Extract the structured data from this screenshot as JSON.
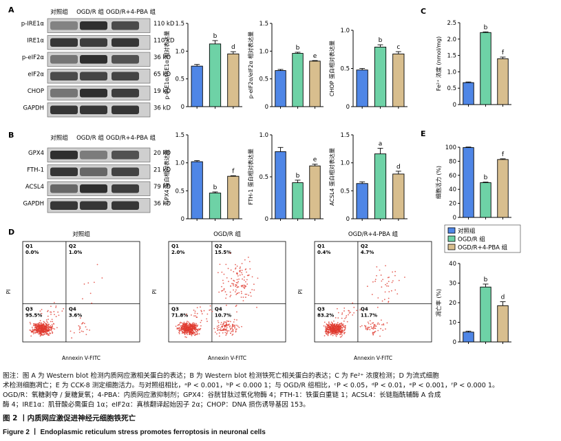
{
  "panel_labels": {
    "A": "A",
    "B": "B",
    "C": "C",
    "D": "D",
    "E": "E"
  },
  "blot_a": {
    "group_headers": [
      "对照组",
      "OGD/R 组",
      "OGD/R+4-PBA 组"
    ],
    "rows": [
      {
        "label": "p-IRE1α",
        "size": "110 kD"
      },
      {
        "label": "IRE1α",
        "size": "110 kD"
      },
      {
        "label": "p-eIF2α",
        "size": "36 kD"
      },
      {
        "label": "eIF2α",
        "size": "65 kD"
      },
      {
        "label": "CHOP",
        "size": "19 kD"
      },
      {
        "label": "GAPDH",
        "size": "36 kD"
      }
    ]
  },
  "blot_b": {
    "group_headers": [
      "对照组",
      "OGD/R 组",
      "OGD/R+4-PBA 组"
    ],
    "rows": [
      {
        "label": "GPX4",
        "size": "20 kD"
      },
      {
        "label": "FTH-1",
        "size": "21 kD"
      },
      {
        "label": "ACSL4",
        "size": "79 kD"
      },
      {
        "label": "GAPDH",
        "size": "36 kD"
      }
    ]
  },
  "chart_data": [
    {
      "id": "a1",
      "type": "bar",
      "ylabel": "p-IRE1α/IRE1α 相对表达量",
      "ylim": [
        0,
        1.5
      ],
      "yticks": [
        "0",
        "0.5",
        "1.0",
        "1.5"
      ],
      "values": [
        0.73,
        1.13,
        0.95
      ],
      "errors": [
        0.03,
        0.06,
        0.04
      ],
      "sig": [
        "",
        "b",
        "d"
      ]
    },
    {
      "id": "a2",
      "type": "bar",
      "ylabel": "p-eIF2α/eIF2α 相对表达量",
      "ylim": [
        0,
        1.5
      ],
      "yticks": [
        "0",
        "0.5",
        "1.0",
        "1.5"
      ],
      "values": [
        0.65,
        0.96,
        0.82
      ],
      "errors": [
        0.02,
        0.02,
        0.01
      ],
      "sig": [
        "",
        "b",
        "e"
      ]
    },
    {
      "id": "a3",
      "type": "bar",
      "ylabel": "CHOP 蛋白相对表达量",
      "ylim": [
        0,
        1.0
      ],
      "yticks": [
        "0",
        "0.5",
        "1.0"
      ],
      "values": [
        0.48,
        0.78,
        0.69
      ],
      "errors": [
        0.02,
        0.03,
        0.03
      ],
      "sig": [
        "",
        "b",
        "c"
      ]
    },
    {
      "id": "c",
      "type": "bar",
      "ylabel": "Fe²⁺ 浓度 (nmol/mg)",
      "ylim": [
        0,
        2.5
      ],
      "yticks": [
        "0",
        "0.5",
        "1.0",
        "1.5",
        "2.0",
        "2.5"
      ],
      "values": [
        0.67,
        2.2,
        1.4
      ],
      "errors": [
        0.02,
        0.02,
        0.05
      ],
      "sig": [
        "",
        "b",
        "f"
      ]
    },
    {
      "id": "b1",
      "type": "bar",
      "ylabel": "GPX4 蛋白相对表达量",
      "ylim": [
        0,
        1.5
      ],
      "yticks": [
        "0",
        "0.5",
        "1.0",
        "1.5"
      ],
      "values": [
        1.02,
        0.46,
        0.76
      ],
      "errors": [
        0.02,
        0.02,
        0.01
      ],
      "sig": [
        "",
        "b",
        "f"
      ]
    },
    {
      "id": "b2",
      "type": "bar",
      "ylabel": "FTH-1 蛋白相对表达量",
      "ylim": [
        0,
        1.0
      ],
      "yticks": [
        "0",
        "0.5",
        "1.0"
      ],
      "values": [
        0.8,
        0.43,
        0.63
      ],
      "errors": [
        0.05,
        0.03,
        0.02
      ],
      "sig": [
        "",
        "b",
        "e"
      ]
    },
    {
      "id": "b3",
      "type": "bar",
      "ylabel": "ACSL4 蛋白相对表达量",
      "ylim": [
        0,
        1.5
      ],
      "yticks": [
        "0",
        "0.5",
        "1.0",
        "1.5"
      ],
      "values": [
        0.63,
        1.16,
        0.8
      ],
      "errors": [
        0.03,
        0.1,
        0.05
      ],
      "sig": [
        "",
        "a",
        "d"
      ]
    },
    {
      "id": "e",
      "type": "bar",
      "ylabel": "细胞活力 (%)",
      "ylim": [
        0,
        100
      ],
      "yticks": [
        "0",
        "20",
        "40",
        "60",
        "80",
        "100"
      ],
      "values": [
        99.5,
        49.5,
        82.5
      ],
      "errors": [
        0.8,
        0.8,
        1.0
      ],
      "sig": [
        "",
        "b",
        "f"
      ]
    },
    {
      "id": "d",
      "type": "bar",
      "ylabel": "凋亡率 (%)",
      "ylim": [
        0,
        40
      ],
      "yticks": [
        "0",
        "10",
        "20",
        "30",
        "40"
      ],
      "values": [
        5.0,
        28.0,
        18.5
      ],
      "errors": [
        0.5,
        1.5,
        2.0
      ],
      "sig": [
        "",
        "b",
        "d"
      ]
    }
  ],
  "groups": [
    "对照组",
    "OGD/R 组",
    "OGD/R+4-PBA 组"
  ],
  "colors": {
    "control": "#4f86e6",
    "ogdr": "#6ed2a6",
    "pba": "#d8be8e",
    "dots": "#e03a2e"
  },
  "flow": {
    "x_label": "Annexin V-FITC",
    "y_label": "PI",
    "plots": [
      {
        "title": "对照组",
        "q1": "0.0%",
        "q2": "1.0%",
        "q3": "95.5%",
        "q4": "3.6%"
      },
      {
        "title": "OGD/R 组",
        "q1": "2.0%",
        "q2": "15.5%",
        "q3": "71.8%",
        "q4": "10.7%"
      },
      {
        "title": "OGD/R+4-PBA 组",
        "q1": "0.4%",
        "q2": "4.7%",
        "q3": "83.2%",
        "q4": "11.7%"
      }
    ],
    "quadrant_names": [
      "Q1",
      "Q2",
      "Q3",
      "Q4"
    ]
  },
  "caption": {
    "lines": [
      "图注：图 A 为 Western blot 检测内质网应激相关蛋白的表达；B 为 Western blot 检测铁死亡相关蛋白的表达；C 为 Fe²⁺ 浓度检测；D 为流式细胞",
      "术检测细胞凋亡；E 为 CCK-8 测定细胞活力。与对照组相比，ᵃP < 0.001，ᵇP < 0.000 1；与 OGD/R 组相比，ᶜP < 0.05，ᵈP < 0.01，ᵉP < 0.001，ᶠP < 0.000 1。",
      "OGD/R：氧糖剥夺 / 复糖复氧；4-PBA：内质网应激抑制剂；GPX4：谷胱甘肽过氧化物酶 4；FTH-1：铁蛋白重链 1；ACSL4：长链脂酰辅酶 A 合成",
      "酶 4；IRE1α：肌苷酸必需蛋白 1α；eIF2α：真核翻译起始因子 2α；CHOP：DNA 损伤诱导基因 153。"
    ],
    "title_cn": "图 2 丨内质网应激促进神经元细胞铁死亡",
    "title_en": "Figure 2  丨  Endoplasmic reticulum stress promotes ferroptosis in neuronal cells"
  }
}
